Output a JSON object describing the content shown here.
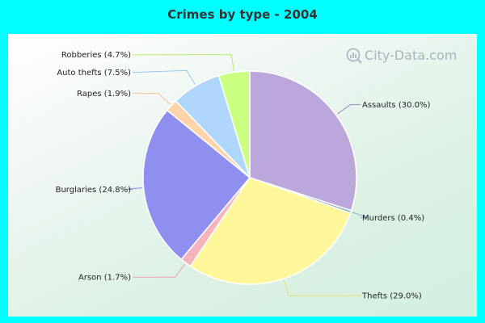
{
  "title": "Crimes by type - 2004",
  "watermark": "City-Data.com",
  "chart_data": {
    "type": "pie",
    "title": "Crimes by type - 2004",
    "slices": [
      {
        "name": "Assaults",
        "value": 30.0,
        "label": "Assaults (30.0%)",
        "color": "#bba7da",
        "line": "#9e88c8",
        "label_side": "right"
      },
      {
        "name": "Murders",
        "value": 0.4,
        "label": "Murders (0.4%)",
        "color": "#8fb1c7",
        "line": "#8fb1c7",
        "label_side": "right"
      },
      {
        "name": "Thefts",
        "value": 29.0,
        "label": "Thefts (29.0%)",
        "color": "#fff799",
        "line": "#e8de70",
        "label_side": "right"
      },
      {
        "name": "Arson",
        "value": 1.7,
        "label": "Arson (1.7%)",
        "color": "#f5b3bd",
        "line": "#eea0ac",
        "label_side": "left"
      },
      {
        "name": "Burglaries",
        "value": 24.8,
        "label": "Burglaries (24.8%)",
        "color": "#8f8ff0",
        "line": "#7f7fe6",
        "label_side": "left"
      },
      {
        "name": "Rapes",
        "value": 1.9,
        "label": "Rapes (1.9%)",
        "color": "#ffd4a8",
        "line": "#f5c090",
        "label_side": "left"
      },
      {
        "name": "Auto thefts",
        "value": 7.5,
        "label": "Auto thefts (7.5%)",
        "color": "#afd6fb",
        "line": "#96c6f2",
        "label_side": "left"
      },
      {
        "name": "Robberies",
        "value": 4.7,
        "label": "Robberies (4.7%)",
        "color": "#caff80",
        "line": "#b6ec66",
        "label_side": "left"
      }
    ]
  }
}
